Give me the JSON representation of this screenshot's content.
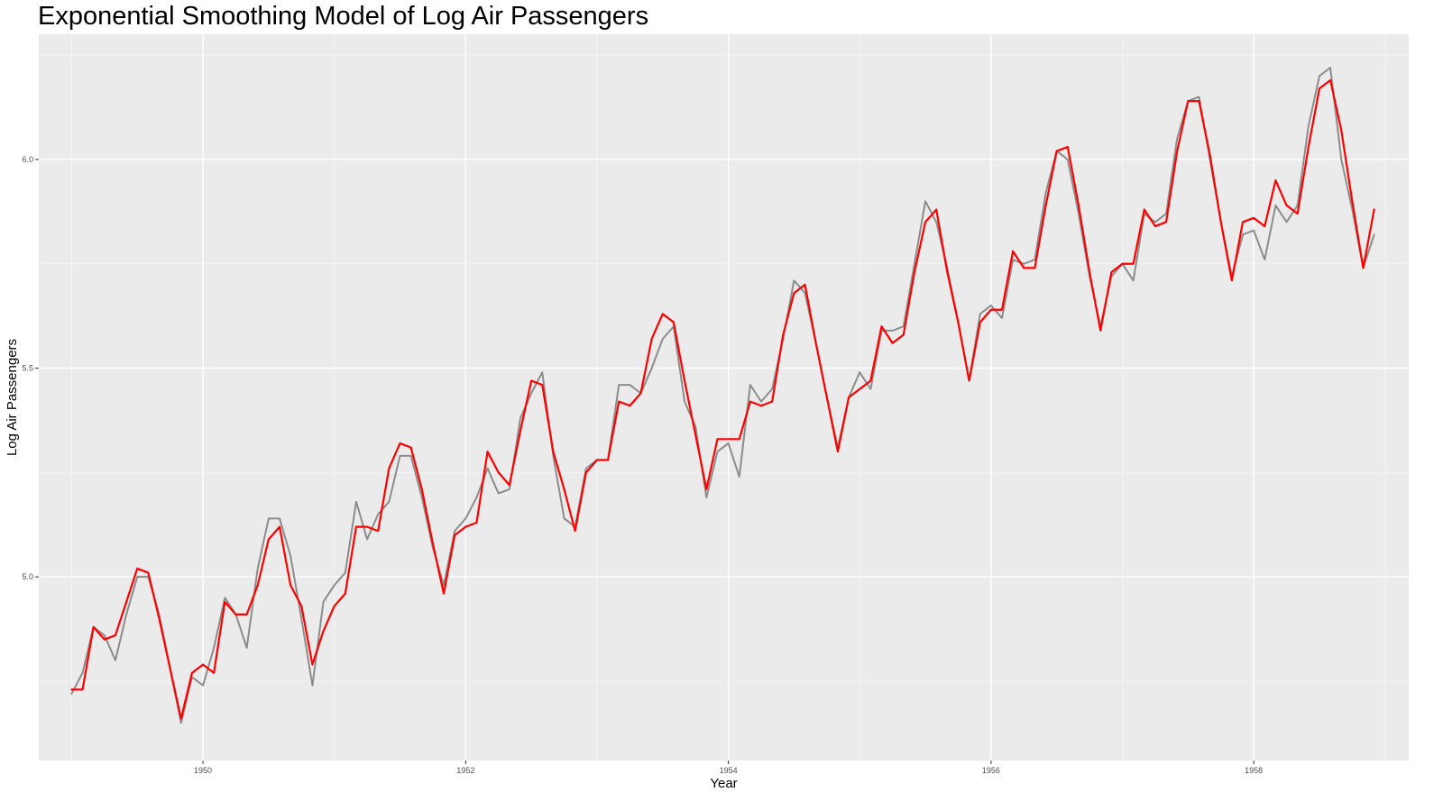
{
  "chart_data": {
    "type": "line",
    "title": "Exponential Smoothing Model of Log Air Passengers",
    "xlabel": "Year",
    "ylabel": "Log Air Passengers",
    "xlim": [
      1948.75,
      1959.18
    ],
    "ylim": [
      4.56,
      6.3
    ],
    "x_ticks": [
      1950,
      1952,
      1954,
      1956,
      1958
    ],
    "y_ticks": [
      5.0,
      5.5,
      6.0
    ],
    "x_tick_labels": [
      "1950",
      "1952",
      "1954",
      "1956",
      "1958"
    ],
    "y_tick_labels": [
      "5.0",
      "5.5",
      "6.0"
    ],
    "grid": true,
    "legend": "none",
    "colors": {
      "panel_background": "#ebebeb",
      "grid_major": "#ffffff",
      "grid_minor": "#f5f5f5",
      "observed_line": "#8c8c8c",
      "fitted_line": "#ff0000"
    },
    "x": [
      1949.0,
      1949.0833,
      1949.1667,
      1949.25,
      1949.3333,
      1949.4167,
      1949.5,
      1949.5833,
      1949.6667,
      1949.75,
      1949.8333,
      1949.9167,
      1950.0,
      1950.0833,
      1950.1667,
      1950.25,
      1950.3333,
      1950.4167,
      1950.5,
      1950.5833,
      1950.6667,
      1950.75,
      1950.8333,
      1950.9167,
      1951.0,
      1951.0833,
      1951.1667,
      1951.25,
      1951.3333,
      1951.4167,
      1951.5,
      1951.5833,
      1951.6667,
      1951.75,
      1951.8333,
      1951.9167,
      1952.0,
      1952.0833,
      1952.1667,
      1952.25,
      1952.3333,
      1952.4167,
      1952.5,
      1952.5833,
      1952.6667,
      1952.75,
      1952.8333,
      1952.9167,
      1953.0,
      1953.0833,
      1953.1667,
      1953.25,
      1953.3333,
      1953.4167,
      1953.5,
      1953.5833,
      1953.6667,
      1953.75,
      1953.8333,
      1953.9167,
      1954.0,
      1954.0833,
      1954.1667,
      1954.25,
      1954.3333,
      1954.4167,
      1954.5,
      1954.5833,
      1954.6667,
      1954.75,
      1954.8333,
      1954.9167,
      1955.0,
      1955.0833,
      1955.1667,
      1955.25,
      1955.3333,
      1955.4167,
      1955.5,
      1955.5833,
      1955.6667,
      1955.75,
      1955.8333,
      1955.9167,
      1956.0,
      1956.0833,
      1956.1667,
      1956.25,
      1956.3333,
      1956.4167,
      1956.5,
      1956.5833,
      1956.6667,
      1956.75,
      1956.8333,
      1956.9167,
      1957.0,
      1957.0833,
      1957.1667,
      1957.25,
      1957.3333,
      1957.4167,
      1957.5,
      1957.5833,
      1957.6667,
      1957.75,
      1957.8333,
      1957.9167,
      1958.0,
      1958.0833,
      1958.1667,
      1958.25,
      1958.3333,
      1958.4167,
      1958.5,
      1958.5833,
      1958.6667,
      1958.75,
      1958.8333,
      1958.9167
    ],
    "series": [
      {
        "values": [
          4.72,
          4.77,
          4.88,
          4.86,
          4.8,
          4.91,
          5.0,
          5.0,
          4.91,
          4.78,
          4.65,
          4.76,
          4.74,
          4.83,
          4.95,
          4.91,
          4.83,
          5.02,
          5.14,
          5.14,
          5.05,
          4.9,
          4.74,
          4.94,
          4.98,
          5.01,
          5.18,
          5.09,
          5.15,
          5.18,
          5.29,
          5.29,
          5.19,
          5.07,
          4.98,
          5.11,
          5.14,
          5.19,
          5.26,
          5.2,
          5.21,
          5.38,
          5.44,
          5.49,
          5.29,
          5.14,
          5.12,
          5.26,
          5.28,
          5.28,
          5.46,
          5.46,
          5.44,
          5.5,
          5.57,
          5.6,
          5.42,
          5.36,
          5.19,
          5.3,
          5.32,
          5.24,
          5.46,
          5.42,
          5.45,
          5.57,
          5.71,
          5.68,
          5.56,
          5.43,
          5.31,
          5.43,
          5.49,
          5.45,
          5.59,
          5.59,
          5.6,
          5.75,
          5.9,
          5.85,
          5.74,
          5.61,
          5.47,
          5.63,
          5.65,
          5.62,
          5.76,
          5.75,
          5.76,
          5.92,
          6.02,
          6.0,
          5.87,
          5.72,
          5.6,
          5.72,
          5.75,
          5.71,
          5.87,
          5.85,
          5.87,
          6.05,
          6.14,
          6.15,
          6.0,
          5.85,
          5.72,
          5.82,
          5.83,
          5.76,
          5.89,
          5.85,
          5.89,
          6.08,
          6.2,
          6.22,
          6.0,
          5.88,
          5.74,
          5.82
        ]
      },
      {
        "values": [
          4.73,
          4.73,
          4.88,
          4.85,
          4.86,
          4.94,
          5.02,
          5.01,
          4.9,
          4.78,
          4.66,
          4.77,
          4.79,
          4.77,
          4.94,
          4.91,
          4.91,
          4.98,
          5.09,
          5.12,
          4.98,
          4.93,
          4.79,
          4.87,
          4.93,
          4.96,
          5.12,
          5.12,
          5.11,
          5.26,
          5.32,
          5.31,
          5.21,
          5.08,
          4.96,
          5.1,
          5.12,
          5.13,
          5.3,
          5.25,
          5.22,
          5.35,
          5.47,
          5.46,
          5.3,
          5.21,
          5.11,
          5.25,
          5.28,
          5.28,
          5.42,
          5.41,
          5.44,
          5.57,
          5.63,
          5.61,
          5.47,
          5.34,
          5.21,
          5.33,
          5.33,
          5.33,
          5.42,
          5.41,
          5.42,
          5.58,
          5.68,
          5.7,
          5.56,
          5.43,
          5.3,
          5.43,
          5.45,
          5.47,
          5.6,
          5.56,
          5.58,
          5.73,
          5.85,
          5.88,
          5.73,
          5.61,
          5.47,
          5.61,
          5.64,
          5.64,
          5.78,
          5.74,
          5.74,
          5.89,
          6.02,
          6.03,
          5.89,
          5.73,
          5.59,
          5.73,
          5.75,
          5.75,
          5.88,
          5.84,
          5.85,
          6.02,
          6.14,
          6.14,
          6.01,
          5.85,
          5.71,
          5.85,
          5.86,
          5.84,
          5.95,
          5.89,
          5.87,
          6.03,
          6.17,
          6.19,
          6.07,
          5.9,
          5.74,
          5.88
        ]
      }
    ]
  }
}
